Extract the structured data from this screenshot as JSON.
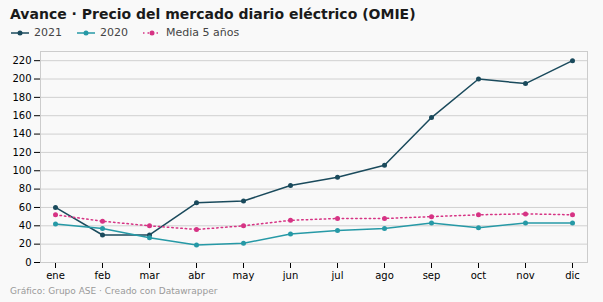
{
  "chart_data": {
    "type": "line",
    "title": "Avance · Precio del mercado diario eléctrico (OMIE)",
    "caption": "Gráfico: Grupo ASE · Creado con Datawrapper",
    "categories": [
      "ene",
      "feb",
      "mar",
      "abr",
      "may",
      "jun",
      "jul",
      "ago",
      "sep",
      "oct",
      "nov",
      "dic"
    ],
    "series": [
      {
        "name": "2021",
        "color": "#1a4a5c",
        "marker": "circle",
        "line_style": "solid",
        "values": [
          60,
          30,
          30,
          65,
          67,
          84,
          93,
          106,
          158,
          200,
          195,
          220
        ]
      },
      {
        "name": "2020",
        "color": "#2699a6",
        "marker": "circle",
        "line_style": "solid",
        "values": [
          42,
          37,
          27,
          19,
          21,
          31,
          35,
          37,
          43,
          38,
          43,
          43
        ]
      },
      {
        "name": "Media 5 años",
        "color": "#d63384",
        "marker": "circle",
        "line_style": "dotted",
        "values": [
          52,
          45,
          40,
          36,
          40,
          46,
          48,
          48,
          50,
          52,
          53,
          52
        ]
      }
    ],
    "ylim": [
      0,
      230
    ],
    "yticks": [
      0,
      20,
      40,
      60,
      80,
      100,
      120,
      140,
      160,
      180,
      200,
      220
    ],
    "grid": "y",
    "legend": "top"
  }
}
